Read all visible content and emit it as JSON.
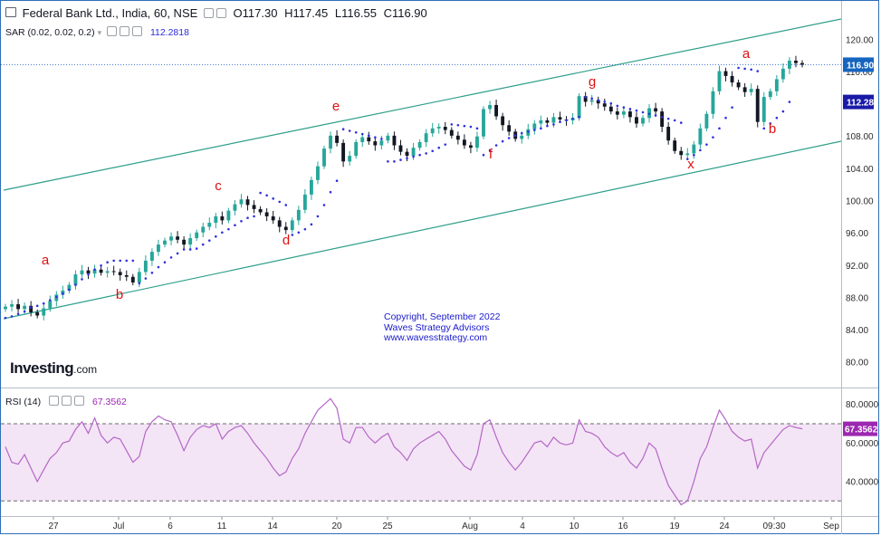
{
  "header": {
    "title": "Federal Bank Ltd., India, 60, NSE",
    "open": "O117.30",
    "high": "H117.45",
    "low": "L116.55",
    "close": "C116.90"
  },
  "indicators": {
    "sar_label": "SAR (0.02, 0.02, 0.2)",
    "sar_value": "112.2818",
    "rsi_label": "RSI (14)",
    "rsi_value": "67.3562"
  },
  "watermark": {
    "line1": "Copyright, September 2022",
    "line2": "Waves Strategy Advisors",
    "line3": "www.wavesstrategy.com"
  },
  "logo": {
    "brand": "Investing",
    "suffix": ".com"
  },
  "colors": {
    "up": "#26a69a",
    "down": "#131722",
    "sar": "#3030e0",
    "channel": "#2e9e8a",
    "label": "#e01010",
    "rsi": "#b566c8",
    "rsi_fill": "#f3e5f5",
    "price_badge": "#1565c0"
  },
  "chart_data": [
    {
      "type": "line",
      "title": "Federal Bank Ltd., India, 60, NSE",
      "y_ticks": [
        "80.00",
        "84.00",
        "88.00",
        "92.00",
        "96.00",
        "100.00",
        "104.00",
        "108.00",
        "112.00",
        "116.00",
        "120.00"
      ],
      "ylim": [
        78,
        122
      ],
      "x_ticks": [
        "27",
        "Jul",
        "6",
        "11",
        "14",
        "20",
        "25",
        "Aug",
        "4",
        "10",
        "16",
        "19",
        "24",
        "09:30",
        "Sep"
      ],
      "last_price": "116.90",
      "sar_last": "112.28",
      "series": [
        {
          "values": [
            86.9,
            87.2,
            86.6,
            87.0,
            86.2,
            85.8,
            86.7,
            87.6,
            88.4,
            88.9,
            89.6,
            90.9,
            91.4,
            91.0,
            91.5,
            91.1,
            91.3,
            91.2,
            90.8,
            90.6,
            89.9,
            91.2,
            92.6,
            93.7,
            94.6,
            95.1,
            95.6,
            95.2,
            94.6,
            95.4,
            96.1,
            96.8,
            97.3,
            98.1,
            97.6,
            98.8,
            99.6,
            100.2,
            99.5,
            99.0,
            98.6,
            98.1,
            97.6,
            96.8,
            96.4,
            97.6,
            98.9,
            100.8,
            102.6,
            104.3,
            106.5,
            108.1,
            107.2,
            104.9,
            105.6,
            107.3,
            107.9,
            107.4,
            106.9,
            107.5,
            108.1,
            106.9,
            106.1,
            105.6,
            106.6,
            107.3,
            108.4,
            109.0,
            109.2,
            108.8,
            108.1,
            107.6,
            106.9,
            106.6,
            108.0,
            111.4,
            111.9,
            110.5,
            109.4,
            108.6,
            107.7,
            108.1,
            108.9,
            109.6,
            110.0,
            109.7,
            110.4,
            110.1,
            110.0,
            110.3,
            113.0,
            112.3,
            112.5,
            112.1,
            111.7,
            111.1,
            110.7,
            111.1,
            110.4,
            109.6,
            110.3,
            111.5,
            111.1,
            109.2,
            107.5,
            106.2,
            105.7,
            105.9,
            107.0,
            109.0,
            110.8,
            113.6,
            116.1,
            115.5,
            114.7,
            114.1,
            113.5,
            113.9,
            109.8,
            112.9,
            113.6,
            115.1,
            116.4,
            117.4,
            117.1,
            116.9
          ]
        },
        {
          "values": [
            85.5,
            85.7,
            86.0,
            86.3,
            86.8,
            87.0,
            87.3,
            87.7,
            88.1,
            88.5,
            89.0,
            89.6,
            90.3,
            90.9,
            91.5,
            92.0,
            92.4,
            92.6,
            92.6,
            92.6,
            92.6,
            89.8,
            90.4,
            91.1,
            91.8,
            92.4,
            93.0,
            93.5,
            94.0,
            94.0,
            94.1,
            94.6,
            95.1,
            95.6,
            96.1,
            96.5,
            97.0,
            97.5,
            97.9,
            98.1,
            101.0,
            100.7,
            100.3,
            99.9,
            99.5,
            95.8,
            96.1,
            96.5,
            97.1,
            98.1,
            99.5,
            101.1,
            102.5,
            108.9,
            108.7,
            108.5,
            108.3,
            108.1,
            107.9,
            107.7,
            104.9,
            104.9,
            105.1,
            105.3,
            105.5,
            105.7,
            105.9,
            106.2,
            106.6,
            107.0,
            109.5,
            109.4,
            109.3,
            109.2,
            109.0,
            105.7,
            106.3,
            106.9,
            107.4,
            107.8,
            108.1,
            108.4,
            108.6,
            108.8,
            109.0,
            109.3,
            109.5,
            109.8,
            110.0,
            110.2,
            110.4,
            112.9,
            112.7,
            112.5,
            112.3,
            112.1,
            111.8,
            111.6,
            111.4,
            111.2,
            111.0,
            110.8,
            110.6,
            110.4,
            110.2,
            110.0,
            109.7,
            105.2,
            105.7,
            106.3,
            107.0,
            107.9,
            109.0,
            110.3,
            111.6,
            116.5,
            116.4,
            116.3,
            116.1,
            109.0,
            109.6,
            110.3,
            111.1,
            112.28
          ]
        }
      ],
      "wave_labels": [
        "a",
        "b",
        "c",
        "d",
        "e",
        "f",
        "g",
        "x",
        "a",
        "b"
      ]
    },
    {
      "type": "line",
      "title": "RSI (14)",
      "y_ticks": [
        "40.0000",
        "60.0000",
        "80.0000"
      ],
      "ylim": [
        24,
        85
      ],
      "levels": [
        30,
        70
      ],
      "last_value": "67.3562",
      "series": [
        {
          "values": [
            58,
            50,
            49,
            54,
            47,
            40,
            46,
            52,
            55,
            60,
            61,
            67,
            71,
            65,
            73,
            64,
            60,
            63,
            62,
            56,
            50,
            53,
            66,
            71,
            74,
            72,
            71,
            64,
            56,
            63,
            67,
            69,
            68,
            70,
            62,
            66,
            68,
            69,
            65,
            60,
            56,
            52,
            47,
            43,
            45,
            52,
            57,
            65,
            71,
            77,
            80,
            83,
            78,
            62,
            60,
            68,
            68,
            63,
            60,
            63,
            65,
            58,
            55,
            51,
            57,
            60,
            62,
            64,
            66,
            62,
            56,
            52,
            48,
            46,
            54,
            70,
            72,
            63,
            55,
            50,
            46,
            50,
            55,
            60,
            61,
            58,
            63,
            60,
            59,
            60,
            72,
            66,
            65,
            63,
            58,
            55,
            53,
            55,
            50,
            47,
            52,
            60,
            57,
            47,
            38,
            33,
            28,
            30,
            40,
            52,
            58,
            68,
            77,
            72,
            66,
            63,
            61,
            62,
            47,
            55,
            59,
            63,
            67,
            69,
            68,
            67.36
          ]
        }
      ]
    }
  ]
}
